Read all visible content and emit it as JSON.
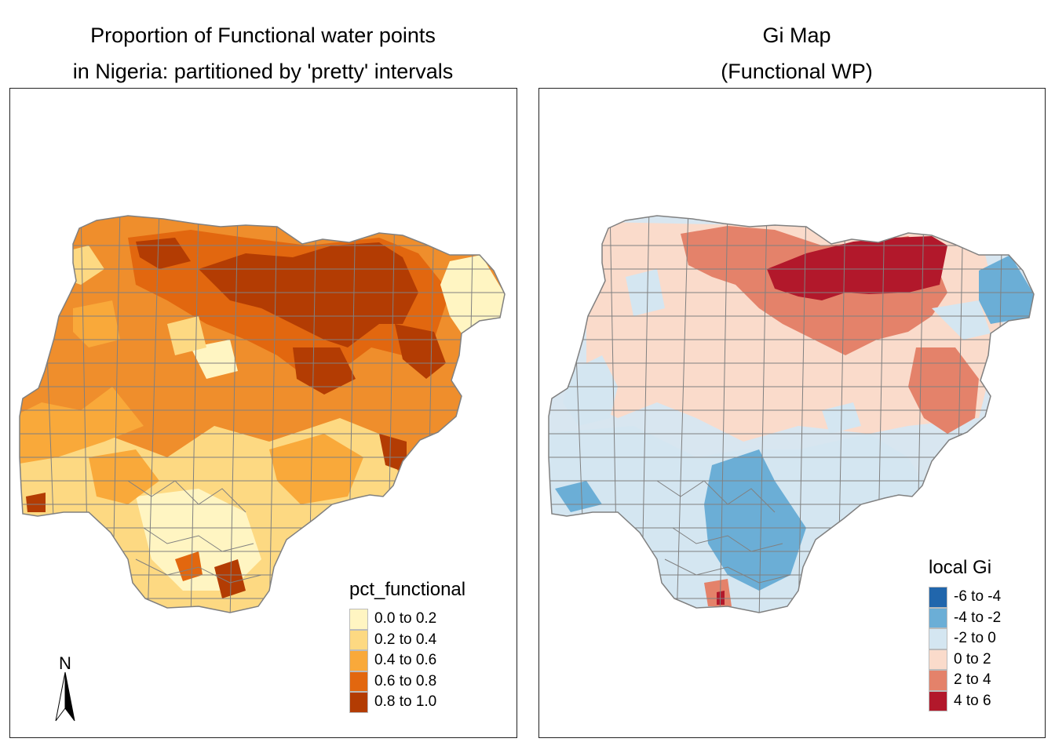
{
  "left_panel": {
    "title_line1": "Proportion of Functional water points",
    "title_line2": "in Nigeria: partitioned by 'pretty' intervals",
    "legend": {
      "title": "pct_functional",
      "items": [
        {
          "label": "0.0 to 0.2",
          "color": "#FFF5C2"
        },
        {
          "label": "0.2 to 0.4",
          "color": "#FDD982"
        },
        {
          "label": "0.4 to 0.6",
          "color": "#F9A93A"
        },
        {
          "label": "0.6 to 0.8",
          "color": "#E2670F"
        },
        {
          "label": "0.8 to 1.0",
          "color": "#B33C03"
        }
      ]
    },
    "north_arrow_label": "N",
    "base_color": "#EF8E2C"
  },
  "right_panel": {
    "title_line1": "Gi Map",
    "title_line2": "(Functional WP)",
    "legend": {
      "title": "local Gi",
      "items": [
        {
          "label": "-6 to -4",
          "color": "#2166AC"
        },
        {
          "label": "-4 to -2",
          "color": "#6BAED6"
        },
        {
          "label": "-2 to 0",
          "color": "#D4E6F1"
        },
        {
          "label": "0 to 2",
          "color": "#FADBCB"
        },
        {
          "label": "2 to 4",
          "color": "#E4826A"
        },
        {
          "label": "4 to 6",
          "color": "#B2182B"
        }
      ]
    },
    "base_color": "#D8E6F0"
  },
  "boundary_color": "#808080"
}
